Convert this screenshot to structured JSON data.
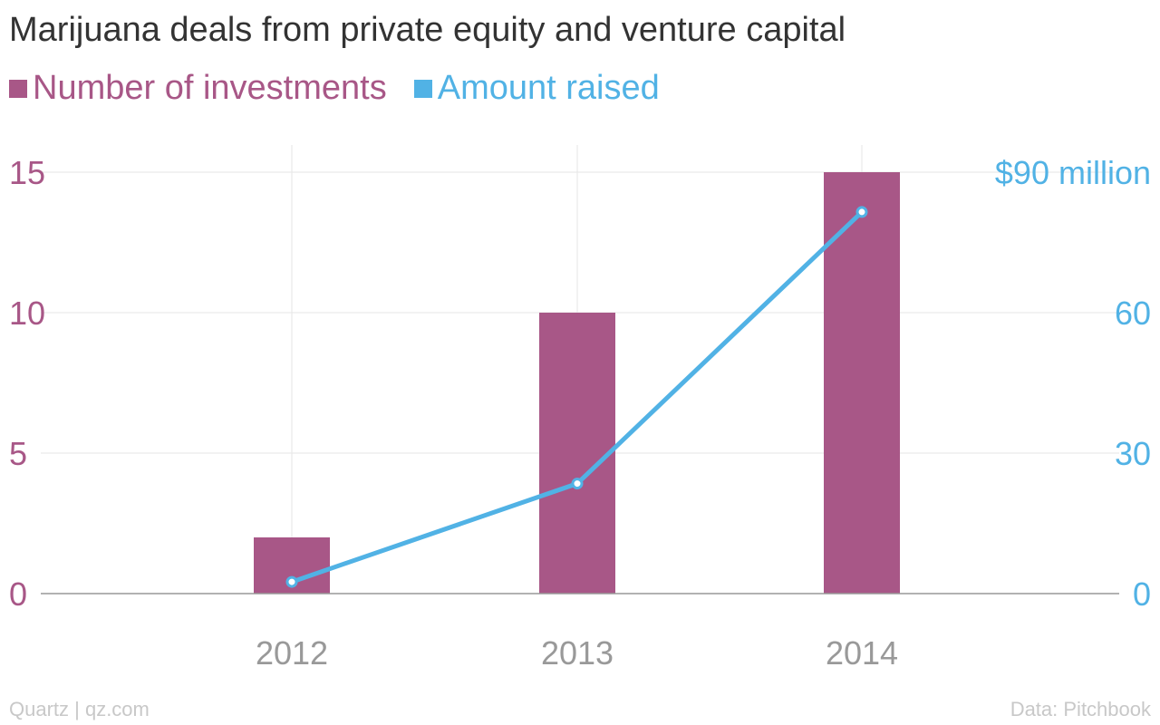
{
  "title": "Marijuana deals from private equity and venture capital",
  "legend": [
    {
      "label": "Number of investments",
      "color": "#a85787"
    },
    {
      "label": "Amount raised",
      "color": "#51b2e5"
    }
  ],
  "footer": {
    "left": "Quartz | qz.com",
    "right": "Data: Pitchbook"
  },
  "chart_data": {
    "type": "bar",
    "categories": [
      "2012",
      "2013",
      "2014"
    ],
    "series": [
      {
        "name": "Number of investments",
        "type": "bar",
        "axis": "left",
        "values": [
          2,
          10,
          15
        ],
        "color": "#a85787"
      },
      {
        "name": "Amount raised",
        "type": "line",
        "axis": "right",
        "values": [
          2.5,
          23.5,
          81.5
        ],
        "color": "#51b2e5"
      }
    ],
    "left_axis": {
      "ticks": [
        "0",
        "5",
        "10",
        "15"
      ],
      "tick_values": [
        0,
        5,
        10,
        15
      ],
      "ylim": [
        0,
        15
      ]
    },
    "right_axis": {
      "ticks": [
        "0",
        "30",
        "60",
        "$90 million"
      ],
      "tick_values": [
        0,
        30,
        60,
        90
      ],
      "ylim": [
        0,
        90
      ]
    },
    "grid": true,
    "legend_position": "top-left"
  }
}
